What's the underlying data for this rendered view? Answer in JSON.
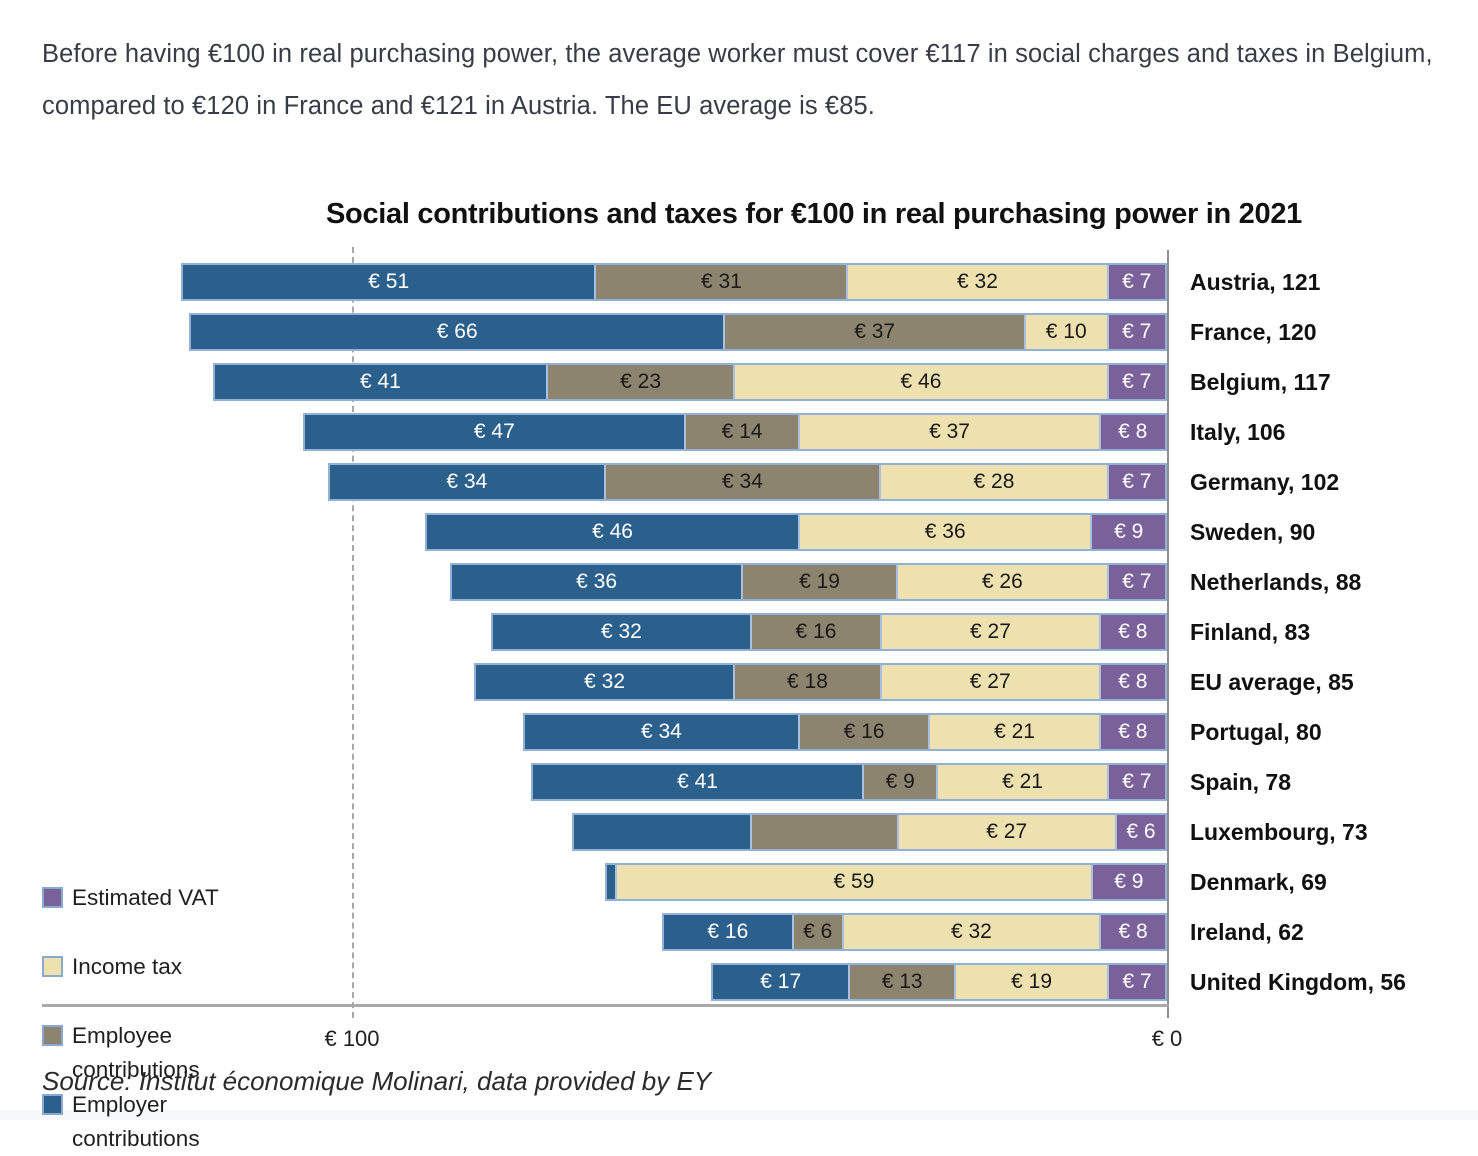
{
  "intro": {
    "text": "Before having €100 in real purchasing power, the average worker must cover €117 in social charges and taxes in Belgium, compared to €120 in France and €121 in Austria. The EU average is €85."
  },
  "source": {
    "text": "Source: Institut économique Molinari, data provided by EY"
  },
  "chart_data": {
    "type": "bar",
    "orientation": "horizontal",
    "stacked": true,
    "title": "Social contributions and taxes for €100 in real purchasing power in 2021",
    "axis": {
      "left_tick_label": "€ 100",
      "right_tick_label": "€ 0",
      "min": 0,
      "max": 100,
      "reversed": true,
      "gridline_at": 100
    },
    "colors": {
      "employer": "#2b5f8c",
      "employee": "#8d8470",
      "income_tax": "#eee1b0",
      "vat": "#7b6199",
      "bar_outline": "#93b1d7",
      "axis_line": "#8f8f8f",
      "gridline_dashed": "#a8a8a8",
      "value_text_dark": "#1a1a1a",
      "value_text_light": "#ffffff"
    },
    "legend": [
      {
        "key": "vat",
        "label": "Estimated VAT"
      },
      {
        "key": "income_tax",
        "label": "Income tax"
      },
      {
        "key": "employee",
        "label": "Employee contributions"
      },
      {
        "key": "employer",
        "label": "Employer contributions"
      }
    ],
    "series_order": [
      "employer",
      "employee",
      "income_tax",
      "vat"
    ],
    "rows": [
      {
        "country": "Austria",
        "total": 121,
        "label": "Austria, 121",
        "segments": [
          {
            "key": "employer",
            "value": 51,
            "label": "€ 51"
          },
          {
            "key": "employee",
            "value": 31,
            "label": "€ 31"
          },
          {
            "key": "income_tax",
            "value": 32,
            "label": "€ 32"
          },
          {
            "key": "vat",
            "value": 7,
            "label": "€ 7"
          }
        ]
      },
      {
        "country": "France",
        "total": 120,
        "label": "France, 120",
        "segments": [
          {
            "key": "employer",
            "value": 66,
            "label": "€ 66"
          },
          {
            "key": "employee",
            "value": 37,
            "label": "€ 37"
          },
          {
            "key": "income_tax",
            "value": 10,
            "label": "€ 10"
          },
          {
            "key": "vat",
            "value": 7,
            "label": "€ 7"
          }
        ]
      },
      {
        "country": "Belgium",
        "total": 117,
        "label": "Belgium, 117",
        "segments": [
          {
            "key": "employer",
            "value": 41,
            "label": "€ 41"
          },
          {
            "key": "employee",
            "value": 23,
            "label": "€ 23"
          },
          {
            "key": "income_tax",
            "value": 46,
            "label": "€ 46"
          },
          {
            "key": "vat",
            "value": 7,
            "label": "€ 7"
          }
        ]
      },
      {
        "country": "Italy",
        "total": 106,
        "label": "Italy, 106",
        "segments": [
          {
            "key": "employer",
            "value": 47,
            "label": "€ 47"
          },
          {
            "key": "employee",
            "value": 14,
            "label": "€ 14"
          },
          {
            "key": "income_tax",
            "value": 37,
            "label": "€ 37"
          },
          {
            "key": "vat",
            "value": 8,
            "label": "€ 8"
          }
        ]
      },
      {
        "country": "Germany",
        "total": 102,
        "label": "Germany, 102",
        "segments": [
          {
            "key": "employer",
            "value": 34,
            "label": "€ 34"
          },
          {
            "key": "employee",
            "value": 34,
            "label": "€ 34"
          },
          {
            "key": "income_tax",
            "value": 28,
            "label": "€ 28"
          },
          {
            "key": "vat",
            "value": 7,
            "label": "€ 7"
          }
        ]
      },
      {
        "country": "Sweden",
        "total": 90,
        "label": "Sweden, 90",
        "segments": [
          {
            "key": "employer",
            "value": 46,
            "label": "€ 46"
          },
          {
            "key": "income_tax",
            "value": 36,
            "label": "€ 36"
          },
          {
            "key": "vat",
            "value": 9,
            "label": "€ 9"
          }
        ]
      },
      {
        "country": "Netherlands",
        "total": 88,
        "label": "Netherlands, 88",
        "segments": [
          {
            "key": "employer",
            "value": 36,
            "label": "€ 36"
          },
          {
            "key": "employee",
            "value": 19,
            "label": "€ 19"
          },
          {
            "key": "income_tax",
            "value": 26,
            "label": "€ 26"
          },
          {
            "key": "vat",
            "value": 7,
            "label": "€ 7"
          }
        ]
      },
      {
        "country": "Finland",
        "total": 83,
        "label": "Finland, 83",
        "segments": [
          {
            "key": "employer",
            "value": 32,
            "label": "€ 32"
          },
          {
            "key": "employee",
            "value": 16,
            "label": "€ 16"
          },
          {
            "key": "income_tax",
            "value": 27,
            "label": "€ 27"
          },
          {
            "key": "vat",
            "value": 8,
            "label": "€ 8"
          }
        ]
      },
      {
        "country": "EU average",
        "total": 85,
        "label": "EU average, 85",
        "segments": [
          {
            "key": "employer",
            "value": 32,
            "label": "€ 32"
          },
          {
            "key": "employee",
            "value": 18,
            "label": "€ 18"
          },
          {
            "key": "income_tax",
            "value": 27,
            "label": "€ 27"
          },
          {
            "key": "vat",
            "value": 8,
            "label": "€ 8"
          }
        ]
      },
      {
        "country": "Portugal",
        "total": 80,
        "label": "Portugal, 80",
        "segments": [
          {
            "key": "employer",
            "value": 34,
            "label": "€ 34"
          },
          {
            "key": "employee",
            "value": 16,
            "label": "€ 16"
          },
          {
            "key": "income_tax",
            "value": 21,
            "label": "€ 21"
          },
          {
            "key": "vat",
            "value": 8,
            "label": "€ 8"
          }
        ]
      },
      {
        "country": "Spain",
        "total": 78,
        "label": "Spain, 78",
        "segments": [
          {
            "key": "employer",
            "value": 41,
            "label": "€ 41"
          },
          {
            "key": "employee",
            "value": 9,
            "label": "€ 9"
          },
          {
            "key": "income_tax",
            "value": 21,
            "label": "€ 21"
          },
          {
            "key": "vat",
            "value": 7,
            "label": "€ 7"
          }
        ]
      },
      {
        "country": "Luxembourg",
        "total": 73,
        "label": "Luxembourg, 73",
        "segments": [
          {
            "key": "employer",
            "value": 22,
            "label": ""
          },
          {
            "key": "employee",
            "value": 18,
            "label": ""
          },
          {
            "key": "income_tax",
            "value": 27,
            "label": "€ 27"
          },
          {
            "key": "vat",
            "value": 6,
            "label": "€ 6"
          }
        ]
      },
      {
        "country": "Denmark",
        "total": 69,
        "label": "Denmark, 69",
        "segments": [
          {
            "key": "employer",
            "value": 1,
            "label": ""
          },
          {
            "key": "income_tax",
            "value": 59,
            "label": "€ 59"
          },
          {
            "key": "vat",
            "value": 9,
            "label": "€ 9"
          }
        ]
      },
      {
        "country": "Ireland",
        "total": 62,
        "label": "Ireland, 62",
        "segments": [
          {
            "key": "employer",
            "value": 16,
            "label": "€ 16"
          },
          {
            "key": "employee",
            "value": 6,
            "label": "€ 6"
          },
          {
            "key": "income_tax",
            "value": 32,
            "label": "€ 32"
          },
          {
            "key": "vat",
            "value": 8,
            "label": "€ 8"
          }
        ]
      },
      {
        "country": "United Kingdom",
        "total": 56,
        "label": "United Kingdom, 56",
        "segments": [
          {
            "key": "employer",
            "value": 17,
            "label": "€ 17"
          },
          {
            "key": "employee",
            "value": 13,
            "label": "€ 13"
          },
          {
            "key": "income_tax",
            "value": 19,
            "label": "€ 19"
          },
          {
            "key": "vat",
            "value": 7,
            "label": "€ 7"
          }
        ]
      }
    ]
  }
}
